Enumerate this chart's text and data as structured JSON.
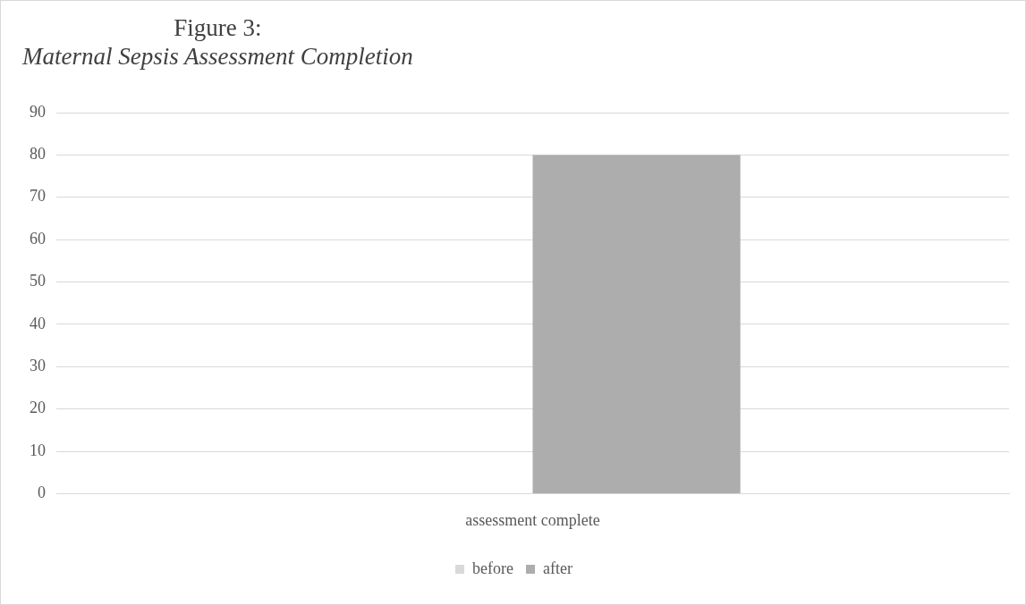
{
  "chart_data": {
    "type": "bar",
    "title": "Figure 3:",
    "subtitle": "Maternal Sepsis Assessment Completion",
    "categories": [
      "assessment complete"
    ],
    "series": [
      {
        "name": "before",
        "color": "#d9d9d9",
        "values": [
          0
        ]
      },
      {
        "name": "after",
        "color": "#adadad",
        "values": [
          80
        ]
      }
    ],
    "ylim": [
      0,
      90
    ],
    "yticks": [
      0,
      10,
      20,
      30,
      40,
      50,
      60,
      70,
      80,
      90
    ],
    "grid": "y",
    "legend": "bottom"
  }
}
